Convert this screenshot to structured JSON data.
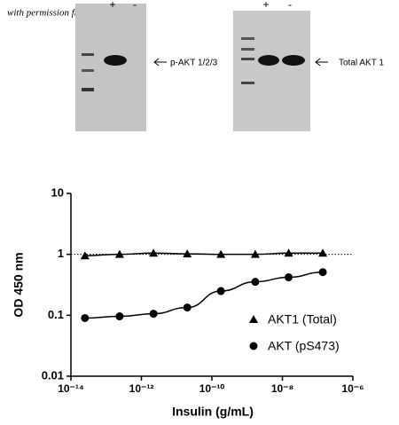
{
  "watermark": "with permission from Abcam",
  "blots": [
    {
      "lanes": [
        "+",
        "-"
      ],
      "label": "p-AKT 1/2/3"
    },
    {
      "lanes": [
        "+",
        "-"
      ],
      "label": "Total AKT 1"
    }
  ],
  "chart_data": {
    "type": "scatter",
    "xlabel": "Insulin (g/mL)",
    "ylabel": "OD 450 nm",
    "xscale": "log",
    "yscale": "log",
    "xlim": [
      1e-14,
      1e-06
    ],
    "ylim": [
      0.01,
      10
    ],
    "xticks": [
      {
        "value": 1e-14,
        "label": "10⁻¹⁴"
      },
      {
        "value": 1e-12,
        "label": "10⁻¹²"
      },
      {
        "value": 1e-10,
        "label": "10⁻¹⁰"
      },
      {
        "value": 1e-08,
        "label": "10⁻⁸"
      },
      {
        "value": 1e-06,
        "label": "10⁻⁶"
      }
    ],
    "yticks": [
      0.01,
      0.1,
      1,
      10
    ],
    "hline": 1,
    "legend": "lower right",
    "series": [
      {
        "name": "AKT1 (Total)",
        "marker": "triangle",
        "color": "#000000",
        "x": [
          2.5e-14,
          2.4e-13,
          2.2e-12,
          2e-11,
          1.8e-10,
          1.7e-09,
          1.5e-08,
          1.4e-07
        ],
        "values": [
          0.95,
          1.0,
          1.05,
          1.02,
          1.0,
          1.0,
          1.05,
          1.05
        ]
      },
      {
        "name": "AKT (pS473)",
        "marker": "circle",
        "color": "#000000",
        "x": [
          2.5e-14,
          2.4e-13,
          2.2e-12,
          2e-11,
          1.8e-10,
          1.7e-09,
          1.5e-08,
          1.4e-07
        ],
        "values": [
          0.09,
          0.096,
          0.106,
          0.134,
          0.25,
          0.354,
          0.42,
          0.51
        ]
      }
    ]
  }
}
